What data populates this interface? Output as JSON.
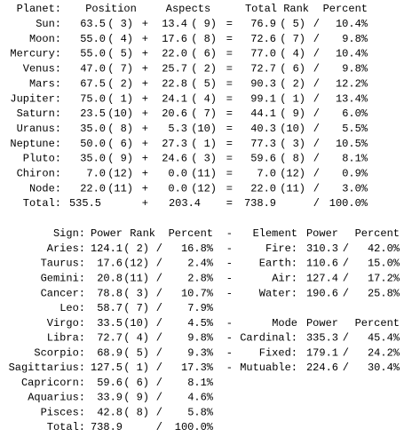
{
  "planets": {
    "header": [
      "Planet:",
      "Position",
      "Aspects",
      "Total",
      "Rank",
      "Percent"
    ],
    "separators": {
      "plus": "+",
      "equals": "=",
      "slash": "/"
    },
    "rows": [
      [
        "Sun:",
        "63.5",
        "( 3)",
        "13.4",
        "( 9)",
        "76.9",
        "( 5)",
        "10.4%"
      ],
      [
        "Moon:",
        "55.0",
        "( 4)",
        "17.6",
        "( 8)",
        "72.6",
        "( 7)",
        "9.8%"
      ],
      [
        "Mercury:",
        "55.0",
        "( 5)",
        "22.0",
        "( 6)",
        "77.0",
        "( 4)",
        "10.4%"
      ],
      [
        "Venus:",
        "47.0",
        "( 7)",
        "25.7",
        "( 2)",
        "72.7",
        "( 6)",
        "9.8%"
      ],
      [
        "Mars:",
        "67.5",
        "( 2)",
        "22.8",
        "( 5)",
        "90.3",
        "( 2)",
        "12.2%"
      ],
      [
        "Jupiter:",
        "75.0",
        "( 1)",
        "24.1",
        "( 4)",
        "99.1",
        "( 1)",
        "13.4%"
      ],
      [
        "Saturn:",
        "23.5",
        "(10)",
        "20.6",
        "( 7)",
        "44.1",
        "( 9)",
        "6.0%"
      ],
      [
        "Uranus:",
        "35.0",
        "( 8)",
        "5.3",
        "(10)",
        "40.3",
        "(10)",
        "5.5%"
      ],
      [
        "Neptune:",
        "50.0",
        "( 6)",
        "27.3",
        "( 1)",
        "77.3",
        "( 3)",
        "10.5%"
      ],
      [
        "Pluto:",
        "35.0",
        "( 9)",
        "24.6",
        "( 3)",
        "59.6",
        "( 8)",
        "8.1%"
      ],
      [
        "Chiron:",
        "7.0",
        "(12)",
        "0.0",
        "(11)",
        "7.0",
        "(12)",
        "0.9%"
      ],
      [
        "Node:",
        "22.0",
        "(11)",
        "0.0",
        "(12)",
        "22.0",
        "(11)",
        "3.0%"
      ]
    ],
    "total": [
      "Total:",
      "535.5",
      "203.4",
      "738.9",
      "100.0%"
    ]
  },
  "signs": {
    "header": [
      "Sign:",
      "Power",
      "Rank",
      "Percent"
    ],
    "dash": "-",
    "rows": [
      [
        "Aries:",
        "124.1",
        "( 2)",
        "16.8%"
      ],
      [
        "Taurus:",
        "17.6",
        "(12)",
        "2.4%"
      ],
      [
        "Gemini:",
        "20.8",
        "(11)",
        "2.8%"
      ],
      [
        "Cancer:",
        "78.8",
        "( 3)",
        "10.7%"
      ],
      [
        "Leo:",
        "58.7",
        "( 7)",
        "7.9%"
      ],
      [
        "Virgo:",
        "33.5",
        "(10)",
        "4.5%"
      ],
      [
        "Libra:",
        "72.7",
        "( 4)",
        "9.8%"
      ],
      [
        "Scorpio:",
        "68.9",
        "( 5)",
        "9.3%"
      ],
      [
        "Sagittarius:",
        "127.5",
        "( 1)",
        "17.3%"
      ],
      [
        "Capricorn:",
        "59.6",
        "( 6)",
        "8.1%"
      ],
      [
        "Aquarius:",
        "33.9",
        "( 9)",
        "4.6%"
      ],
      [
        "Pisces:",
        "42.8",
        "( 8)",
        "5.8%"
      ]
    ],
    "total": [
      "Total:",
      "738.9",
      "100.0%"
    ]
  },
  "elements": {
    "header": [
      "Element",
      "Power",
      "Percent"
    ],
    "rows": [
      [
        "Fire:",
        "310.3",
        "42.0%"
      ],
      [
        "Earth:",
        "110.6",
        "15.0%"
      ],
      [
        "Air:",
        "127.4",
        "17.2%"
      ],
      [
        "Water:",
        "190.6",
        "25.8%"
      ]
    ]
  },
  "modes": {
    "header": [
      "Mode",
      "Power",
      "Percent"
    ],
    "rows": [
      [
        "Cardinal:",
        "335.3",
        "45.4%"
      ],
      [
        "Fixed:",
        "179.1",
        "24.2%"
      ],
      [
        "Mutuable:",
        "224.6",
        "30.4%"
      ]
    ]
  }
}
